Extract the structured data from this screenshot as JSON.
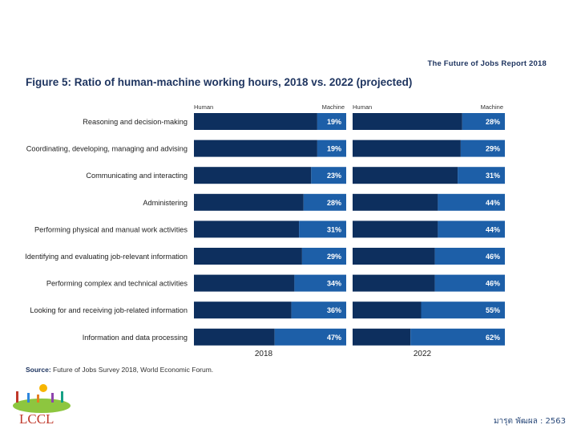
{
  "header": {
    "report_name": "The Future of Jobs Report 2018",
    "figure_title": "Figure 5: Ratio of human-machine working hours, 2018 vs. 2022 (projected)"
  },
  "footer": {
    "source_label": "Source:",
    "source_text": " Future of Jobs Survey 2018, World Economic Forum.",
    "logo_text": "LCCL",
    "credit": "มารุต พัฒผล : 2563"
  },
  "colors": {
    "human": "#0d2f5e",
    "machine": "#1d5fa8",
    "label_text": "#ffffff"
  },
  "chart_data": {
    "type": "bar",
    "orientation": "horizontal",
    "stacked": true,
    "categories": [
      "Reasoning and decision-making",
      "Coordinating, developing, managing and advising",
      "Communicating and interacting",
      "Administering",
      "Performing physical and manual work activities",
      "Identifying and evaluating job-relevant information",
      "Performing complex and technical activities",
      "Looking for and receiving job-related information",
      "Information and data processing"
    ],
    "panels": [
      {
        "title": "2018",
        "human_label": "Human",
        "machine_label": "Machine",
        "machine_values": [
          19,
          19,
          23,
          28,
          31,
          29,
          34,
          36,
          47
        ]
      },
      {
        "title": "2022",
        "human_label": "Human",
        "machine_label": "Machine",
        "machine_values": [
          28,
          29,
          31,
          44,
          44,
          46,
          46,
          55,
          62
        ]
      }
    ],
    "value_suffix": "%",
    "xlim": [
      0,
      100
    ]
  }
}
